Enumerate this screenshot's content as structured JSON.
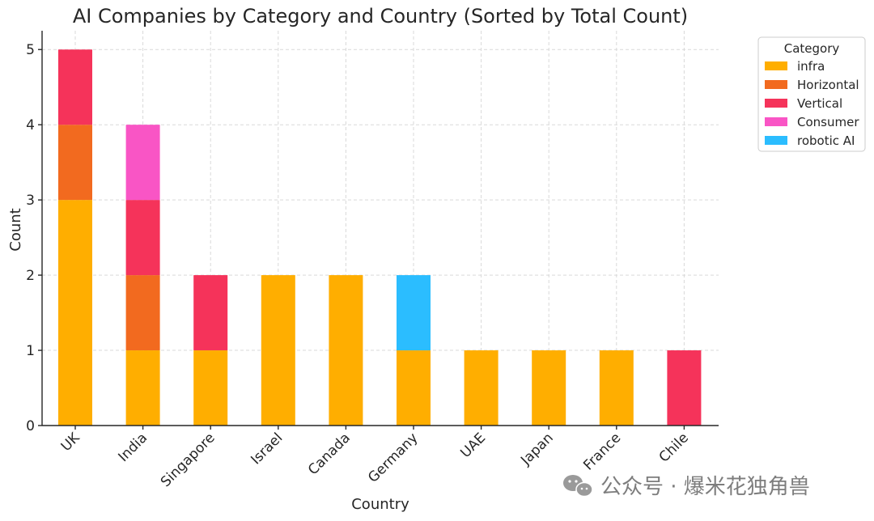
{
  "watermark": {
    "text": "公众号 · 爆米花独角兽",
    "icon": "wechat-icon"
  },
  "chart_data": {
    "type": "bar",
    "stacked": true,
    "title": "AI Companies by Category and Country (Sorted by Total Count)",
    "xlabel": "Country",
    "ylabel": "Count",
    "ylim": [
      0,
      5.25
    ],
    "yticks": [
      "0",
      "1",
      "2",
      "3",
      "4",
      "5"
    ],
    "grid": true,
    "legend_title": "Category",
    "legend_position": "upper-right-outside",
    "categories": [
      "UK",
      "India",
      "Singapore",
      "Israel",
      "Canada",
      "Germany",
      "UAE",
      "Japan",
      "France",
      "Chile"
    ],
    "series": [
      {
        "name": "infra",
        "color": "#FFAE00",
        "values": [
          3,
          1,
          1,
          2,
          2,
          1,
          1,
          1,
          1,
          0
        ]
      },
      {
        "name": "Horizontal",
        "color": "#F26A1F",
        "values": [
          1,
          1,
          0,
          0,
          0,
          0,
          0,
          0,
          0,
          0
        ]
      },
      {
        "name": "Vertical",
        "color": "#F5335A",
        "values": [
          1,
          1,
          1,
          0,
          0,
          0,
          0,
          0,
          0,
          1
        ]
      },
      {
        "name": "Consumer",
        "color": "#F955C5",
        "values": [
          0,
          1,
          0,
          0,
          0,
          0,
          0,
          0,
          0,
          0
        ]
      },
      {
        "name": "robotic AI",
        "color": "#2BBDFF",
        "values": [
          0,
          0,
          0,
          0,
          0,
          1,
          0,
          0,
          0,
          0
        ]
      }
    ]
  }
}
